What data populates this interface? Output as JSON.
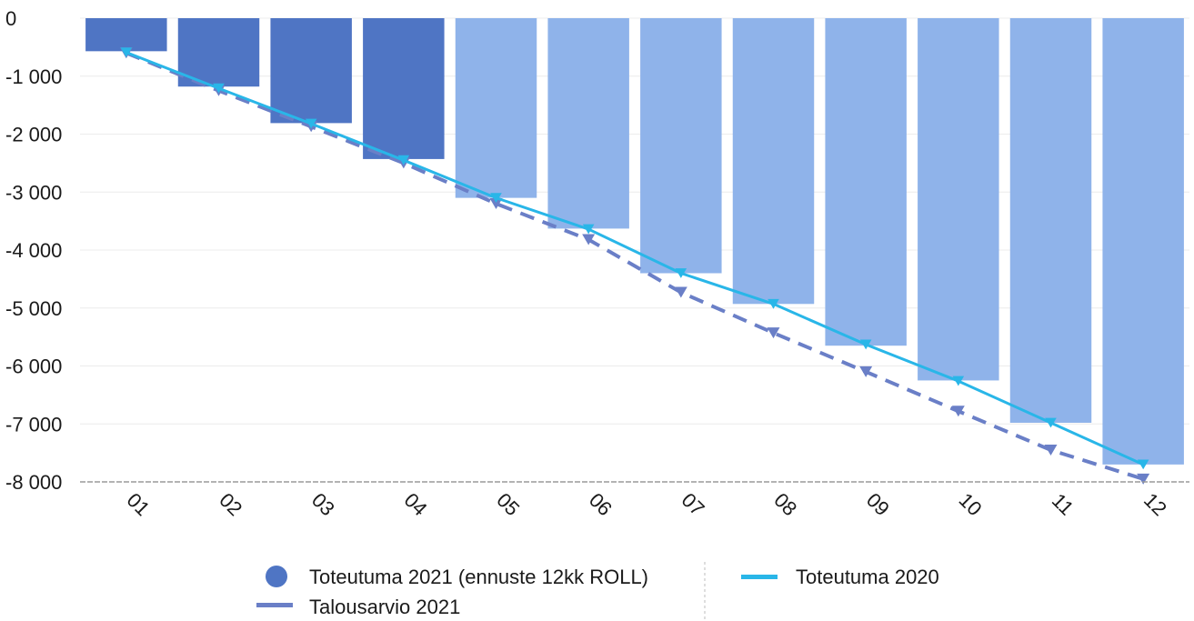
{
  "chart_data": {
    "type": "bar",
    "categories": [
      "01",
      "02",
      "03",
      "04",
      "05",
      "06",
      "07",
      "08",
      "09",
      "10",
      "11",
      "12"
    ],
    "ylim": [
      -8000,
      0
    ],
    "yticks": [
      0,
      -1000,
      -2000,
      -3000,
      -4000,
      -5000,
      -6000,
      -7000,
      -8000
    ],
    "ytick_labels": [
      "0",
      "-1 000",
      "-2 000",
      "-3 000",
      "-4 000",
      "-5 000",
      "-6 000",
      "-7 000",
      "-8 000"
    ],
    "grid": true,
    "legend_position": "bottom",
    "series": [
      {
        "name": "Toteutuma 2021 (ennuste 12kk ROLL)",
        "kind": "bar",
        "values": [
          -570,
          -1180,
          -1810,
          -2430,
          -3100,
          -3630,
          -4400,
          -4930,
          -5650,
          -6250,
          -6980,
          -7700
        ],
        "colors": [
          "#4f75c4",
          "#4f75c4",
          "#4f75c4",
          "#4f75c4",
          "#8fb3ea",
          "#8fb3ea",
          "#8fb3ea",
          "#8fb3ea",
          "#8fb3ea",
          "#8fb3ea",
          "#8fb3ea",
          "#8fb3ea"
        ],
        "legend_color": "#4f75c4"
      },
      {
        "name": "Talousarvio 2021",
        "kind": "line-dashed",
        "values": [
          -600,
          -1250,
          -1870,
          -2500,
          -3200,
          -3820,
          -4730,
          -5430,
          -6100,
          -6780,
          -7450,
          -7950
        ],
        "color": "#6a7fc7"
      },
      {
        "name": "Toteutuma 2020",
        "kind": "line",
        "values": [
          -590,
          -1210,
          -1820,
          -2450,
          -3100,
          -3640,
          -4400,
          -4930,
          -5630,
          -6260,
          -6980,
          -7700
        ],
        "color": "#29b6e8"
      }
    ]
  }
}
